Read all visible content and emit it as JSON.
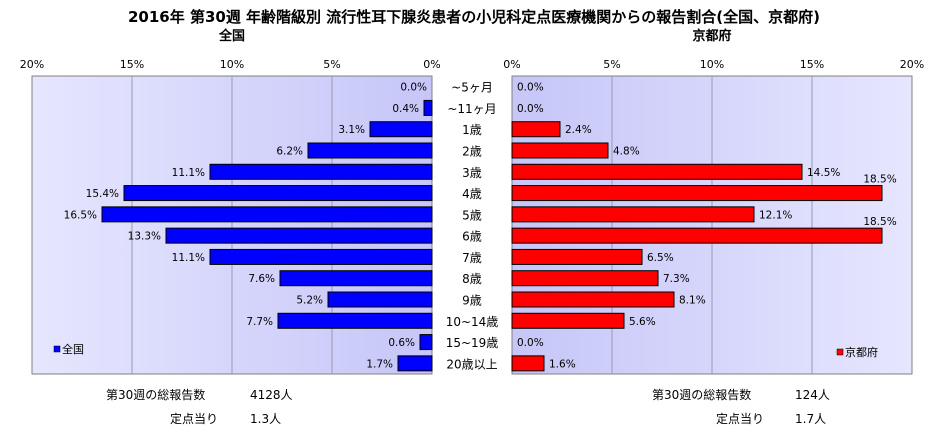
{
  "chart_data": {
    "type": "bar",
    "orientation": "horizontal-butterfly",
    "title": "2016年 第30週 年齢階級別 流行性耳下腺炎患者の小児科定点医療機関からの報告割合(全国、京都府)",
    "categories": [
      "~5ヶ月",
      "~11ヶ月",
      "1歳",
      "2歳",
      "3歳",
      "4歳",
      "5歳",
      "6歳",
      "7歳",
      "8歳",
      "9歳",
      "10~14歳",
      "15~19歳",
      "20歳以上"
    ],
    "series": [
      {
        "name": "全国",
        "color": "#0000ff",
        "side": "left",
        "values": [
          0.0,
          0.4,
          3.1,
          6.2,
          11.1,
          15.4,
          16.5,
          13.3,
          11.1,
          7.6,
          5.2,
          7.7,
          0.6,
          1.7
        ],
        "labels": [
          "0.0%",
          "0.4%",
          "3.1%",
          "6.2%",
          "11.1%",
          "15.4%",
          "16.5%",
          "13.3%",
          "11.1%",
          "7.6%",
          "5.2%",
          "7.7%",
          "0.6%",
          "1.7%"
        ]
      },
      {
        "name": "京都府",
        "color": "#ff0000",
        "side": "right",
        "values": [
          0.0,
          0.0,
          2.4,
          4.8,
          14.5,
          18.5,
          12.1,
          18.5,
          6.5,
          7.3,
          8.1,
          5.6,
          0.0,
          1.6
        ],
        "labels": [
          "0.0%",
          "0.0%",
          "2.4%",
          "4.8%",
          "14.5%",
          "18.5%",
          "12.1%",
          "18.5%",
          "6.5%",
          "7.3%",
          "8.1%",
          "5.6%",
          "0.0%",
          "1.6%"
        ]
      }
    ],
    "panel_titles": [
      "全国",
      "京都府"
    ],
    "left_ticks": [
      "20%",
      "15%",
      "10%",
      "5%",
      "0%"
    ],
    "right_ticks": [
      "0%",
      "5%",
      "10%",
      "15%",
      "20%"
    ],
    "xlim": [
      0,
      20
    ],
    "grid": true,
    "legend_placement": [
      "bottom-left",
      "bottom-right"
    ],
    "plot_background": "#ccccff"
  },
  "footer": {
    "left": {
      "total_label": "第30週の総報告数",
      "total_value": "4128人",
      "per_label": "定点当り",
      "per_value": "1.3人"
    },
    "right": {
      "total_label": "第30週の総報告数",
      "total_value": "124人",
      "per_label": "定点当り",
      "per_value": "1.7人"
    }
  }
}
